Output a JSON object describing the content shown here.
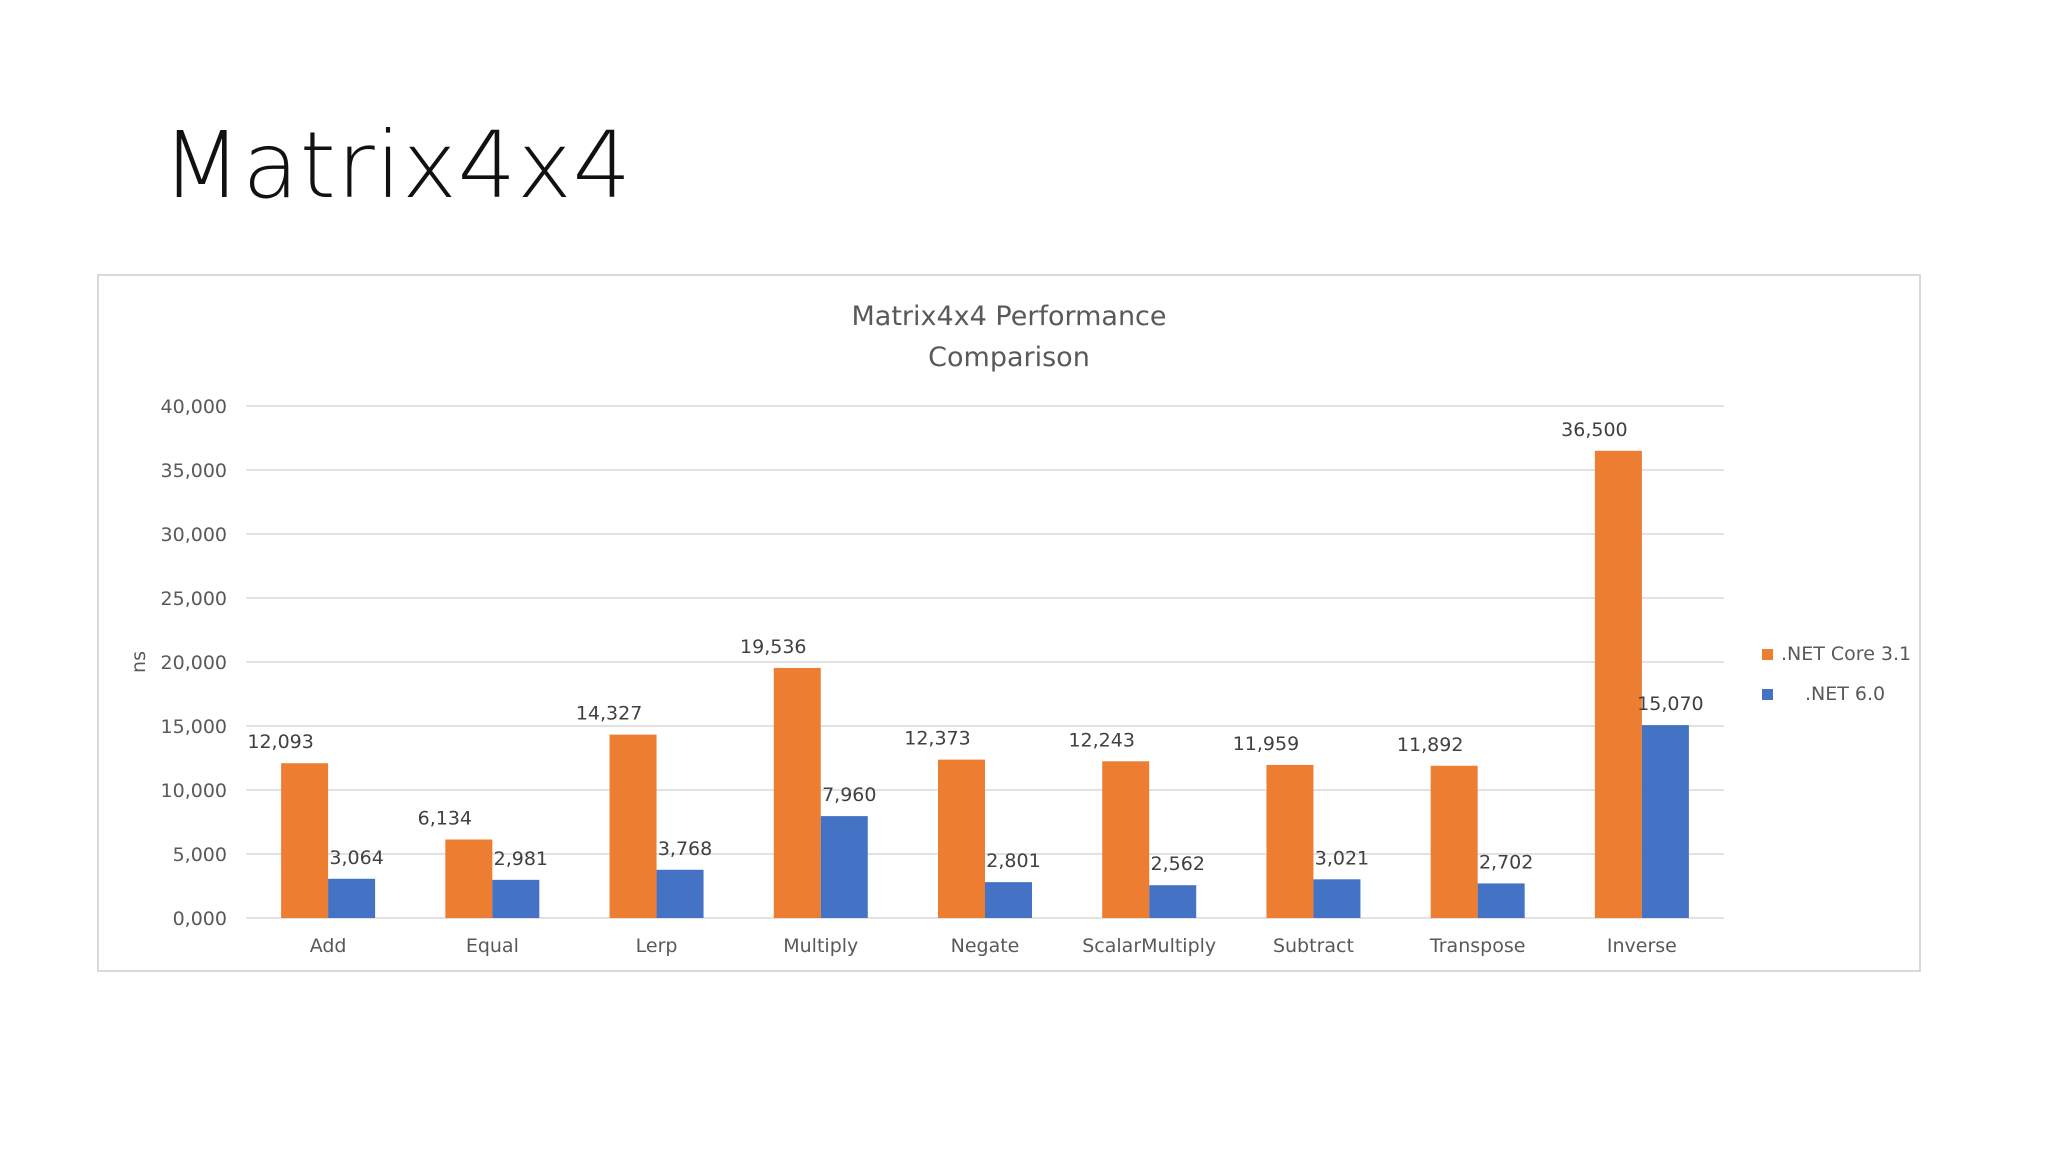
{
  "slide": {
    "title": "Matrix4x4"
  },
  "colors": {
    "series1": "#ed7d31",
    "series2": "#4472c4",
    "grid": "#d9d9d9",
    "text": "#595959"
  },
  "chart_data": {
    "type": "bar",
    "title": [
      "Matrix4x4 Performance",
      "Comparison"
    ],
    "xlabel": "",
    "ylabel": "ns",
    "ylim": [
      0,
      40000
    ],
    "yticks": [
      0,
      5000,
      10000,
      15000,
      20000,
      25000,
      30000,
      35000,
      40000
    ],
    "ytick_labels": [
      "0,000",
      "5,000",
      "10,000",
      "15,000",
      "20,000",
      "25,000",
      "30,000",
      "35,000",
      "40,000"
    ],
    "grid": true,
    "legend_position": "right",
    "categories": [
      "Add",
      "Equal",
      "Lerp",
      "Multiply",
      "Negate",
      "ScalarMultiply",
      "Subtract",
      "Transpose",
      "Inverse"
    ],
    "series": [
      {
        "name": ".NET Core 3.1",
        "values": [
          12093,
          6134,
          14327,
          19536,
          12373,
          12243,
          11959,
          11892,
          36500
        ],
        "labels": [
          "12,093",
          "6,134",
          "14,327",
          "19,536",
          "12,373",
          "12,243",
          "11,959",
          "11,892",
          "36,500"
        ]
      },
      {
        "name": ".NET 6.0",
        "values": [
          3064,
          2981,
          3768,
          7960,
          2801,
          2562,
          3021,
          2702,
          15070
        ],
        "labels": [
          "3,064",
          "2,981",
          "3,768",
          "7,960",
          "2,801",
          "2,562",
          "3,021",
          "2,702",
          "15,070"
        ]
      }
    ]
  }
}
